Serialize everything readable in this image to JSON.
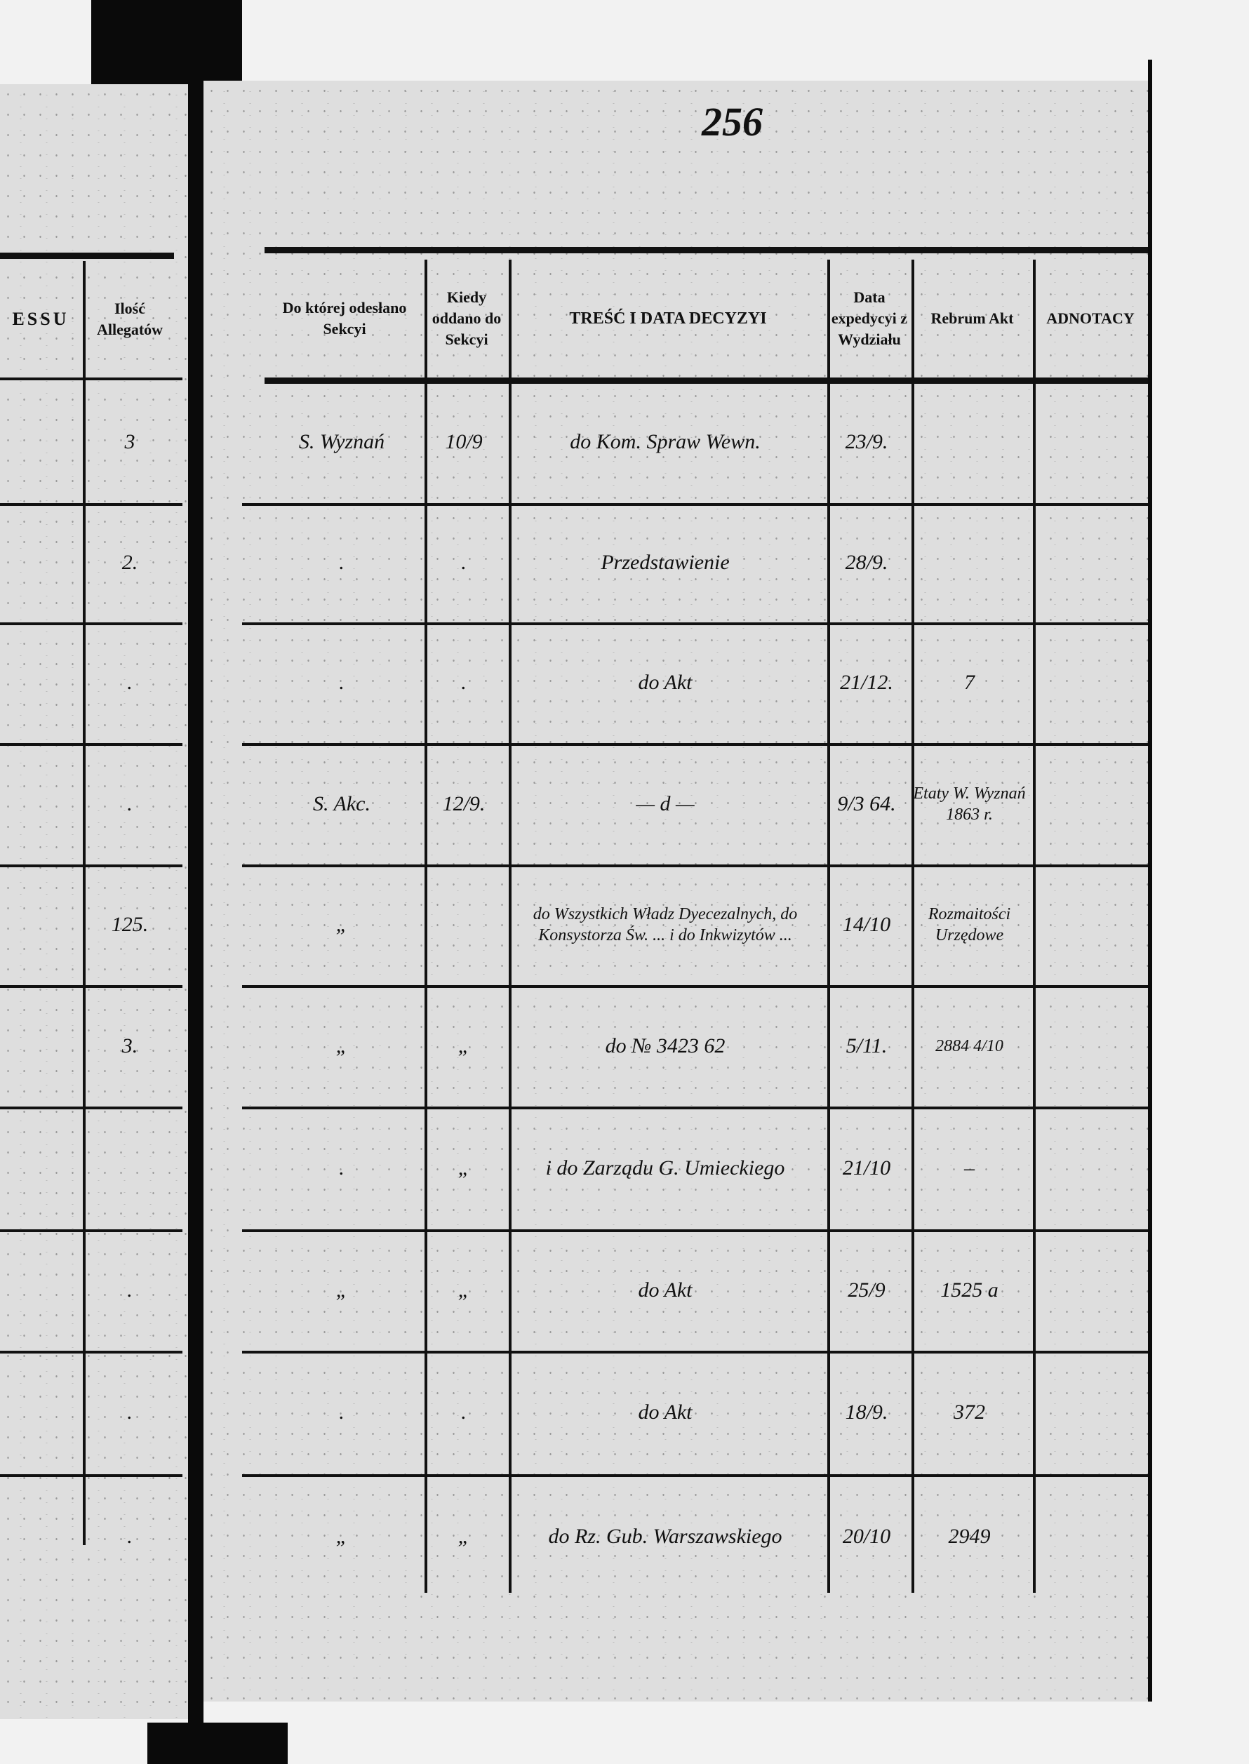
{
  "page_number": "256",
  "left_page": {
    "headers": [
      "ESSU",
      "Ilość Allegatów"
    ],
    "allegat_counts": [
      "3",
      "2.",
      ".",
      ".",
      "125.",
      "3.",
      "",
      ".",
      ".",
      "."
    ]
  },
  "right_page": {
    "headers": [
      "Do której odesłano Sekcyi",
      "Kiedy oddano do Sekcyi",
      "TREŚĆ I DATA DECYZYI",
      "Data expedycyi z Wydziału",
      "Rebrum Akt",
      "ADNOTACY"
    ],
    "rows": [
      [
        "S. Wyznań",
        "10/9",
        "do Kom. Spraw Wewn.",
        "23/9.",
        ""
      ],
      [
        ".",
        ".",
        "Przedstawienie",
        "28/9.",
        ""
      ],
      [
        ".",
        ".",
        "do Akt",
        "21/12.",
        "7"
      ],
      [
        "S. Akc.",
        "12/9.",
        "— d —",
        "9/3 64.",
        "Etaty W. Wyznań 1863 r."
      ],
      [
        "„",
        "",
        "do Wszystkich Władz Dyecezalnych, do Konsystorza Św. ... i do Inkwizytów ...",
        "14/10",
        "Rozmaitości Urzędowe"
      ],
      [
        "„",
        "„",
        "do № 3423 62",
        "5/11.",
        "2884 4/10"
      ],
      [
        ".",
        "„",
        "i do Zarządu G. Umieckiego",
        "21/10",
        "–"
      ],
      [
        "„",
        "„",
        "do Akt",
        "25/9",
        "1525 a"
      ],
      [
        ".",
        ".",
        "do Akt",
        "18/9.",
        "372"
      ],
      [
        "„",
        "„",
        "do Rz. Gub. Warszawskiego",
        "20/10",
        "2949"
      ]
    ]
  }
}
